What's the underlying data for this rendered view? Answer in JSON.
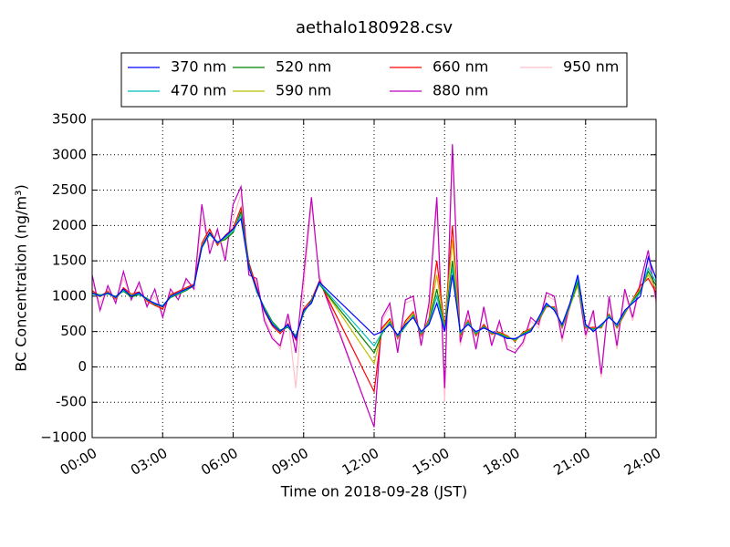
{
  "chart_data": {
    "type": "line",
    "title": "aethalo180928.csv",
    "xlabel": "Time on 2018-09-28 (JST)",
    "ylabel": "BC Concentration (ng/m³)",
    "legend": "upper center",
    "grid": true,
    "xlim": [
      0,
      1440
    ],
    "xticks": [
      {
        "value": 0,
        "label": "00:00"
      },
      {
        "value": 180,
        "label": "03:00"
      },
      {
        "value": 360,
        "label": "06:00"
      },
      {
        "value": 540,
        "label": "09:00"
      },
      {
        "value": 720,
        "label": "12:00"
      },
      {
        "value": 900,
        "label": "15:00"
      },
      {
        "value": 1080,
        "label": "18:00"
      },
      {
        "value": 1260,
        "label": "21:00"
      },
      {
        "value": 1440,
        "label": "24:00"
      }
    ],
    "ylim": [
      -1000,
      3500
    ],
    "yticks": [
      {
        "value": -1000,
        "label": "−1000"
      },
      -500,
      0,
      500,
      1000,
      1500,
      2000,
      2500,
      3000,
      3500
    ],
    "x": [
      0,
      20,
      40,
      60,
      80,
      100,
      120,
      140,
      160,
      180,
      200,
      220,
      240,
      260,
      280,
      300,
      320,
      340,
      360,
      380,
      400,
      420,
      440,
      460,
      480,
      500,
      520,
      540,
      560,
      580,
      720,
      740,
      760,
      780,
      800,
      820,
      840,
      860,
      880,
      900,
      920,
      940,
      960,
      980,
      1000,
      1020,
      1040,
      1060,
      1080,
      1100,
      1120,
      1140,
      1160,
      1180,
      1200,
      1220,
      1240,
      1260,
      1280,
      1300,
      1320,
      1340,
      1360,
      1380,
      1400,
      1420,
      1440
    ],
    "series": [
      {
        "name": "370 nm",
        "color": "#0000ff",
        "values": [
          1050,
          1000,
          1050,
          980,
          1100,
          1000,
          1050,
          950,
          900,
          850,
          1000,
          1050,
          1100,
          1150,
          1700,
          1900,
          1750,
          1850,
          1950,
          2100,
          1400,
          1100,
          800,
          600,
          500,
          600,
          400,
          800,
          900,
          1200,
          450,
          500,
          600,
          450,
          600,
          700,
          500,
          600,
          900,
          500,
          1300,
          500,
          600,
          500,
          550,
          500,
          450,
          400,
          400,
          450,
          500,
          700,
          900,
          800,
          600,
          900,
          1300,
          600,
          500,
          600,
          700,
          600,
          800,
          900,
          1000,
          1550,
          1250
        ]
      },
      {
        "name": "470 nm",
        "color": "#00bfbf",
        "values": [
          1030,
          1010,
          1040,
          990,
          1080,
          1010,
          1030,
          960,
          890,
          870,
          990,
          1040,
          1090,
          1160,
          1680,
          1880,
          1760,
          1830,
          1920,
          2150,
          1420,
          1080,
          820,
          620,
          510,
          580,
          420,
          780,
          920,
          1180,
          300,
          480,
          620,
          440,
          580,
          720,
          480,
          620,
          1000,
          520,
          1400,
          480,
          620,
          480,
          560,
          490,
          460,
          410,
          390,
          460,
          510,
          680,
          880,
          820,
          580,
          880,
          1250,
          580,
          520,
          580,
          720,
          580,
          780,
          920,
          1050,
          1400,
          1200
        ]
      },
      {
        "name": "520 nm",
        "color": "#008000",
        "values": [
          1040,
          1020,
          1030,
          1000,
          1070,
          990,
          1020,
          970,
          880,
          860,
          980,
          1030,
          1080,
          1150,
          1690,
          1870,
          1770,
          1800,
          1900,
          2200,
          1450,
          1060,
          840,
          640,
          520,
          560,
          440,
          760,
          940,
          1170,
          200,
          470,
          630,
          430,
          570,
          730,
          470,
          630,
          1100,
          530,
          1500,
          470,
          630,
          470,
          570,
          480,
          470,
          420,
          380,
          470,
          520,
          670,
          870,
          830,
          570,
          870,
          1200,
          570,
          530,
          570,
          730,
          570,
          770,
          930,
          1080,
          1350,
          1150
        ]
      },
      {
        "name": "590 nm",
        "color": "#bfbf00",
        "values": [
          1060,
          990,
          1060,
          970,
          1090,
          1020,
          1040,
          940,
          900,
          840,
          1010,
          1050,
          1110,
          1140,
          1720,
          1910,
          1740,
          1820,
          1930,
          2180,
          1430,
          1090,
          810,
          610,
          490,
          590,
          410,
          790,
          910,
          1190,
          50,
          520,
          650,
          420,
          620,
          750,
          460,
          650,
          1300,
          540,
          1800,
          460,
          640,
          460,
          580,
          470,
          480,
          430,
          370,
          480,
          530,
          660,
          860,
          840,
          560,
          860,
          1150,
          560,
          540,
          560,
          740,
          560,
          760,
          940,
          1100,
          1300,
          1100
        ]
      },
      {
        "name": "660 nm",
        "color": "#ff0000",
        "values": [
          1080,
          1000,
          1070,
          960,
          1120,
          1030,
          1060,
          930,
          870,
          820,
          1020,
          1070,
          1120,
          1170,
          1750,
          1950,
          1720,
          1860,
          1960,
          2250,
          1480,
          1120,
          790,
          580,
          470,
          610,
          380,
          820,
          950,
          1210,
          -350,
          550,
          680,
          400,
          650,
          780,
          440,
          680,
          1500,
          560,
          2000,
          440,
          660,
          440,
          600,
          460,
          490,
          440,
          360,
          490,
          540,
          650,
          850,
          850,
          550,
          850,
          1250,
          550,
          560,
          550,
          750,
          550,
          750,
          950,
          1150,
          1250,
          1050
        ]
      },
      {
        "name": "880 nm",
        "color": "#bf00bf",
        "values": [
          1300,
          800,
          1150,
          900,
          1350,
          950,
          1200,
          850,
          1100,
          700,
          1100,
          950,
          1250,
          1100,
          2300,
          1600,
          1950,
          1500,
          2300,
          2550,
          1300,
          1250,
          650,
          400,
          300,
          750,
          200,
          1300,
          2400,
          1250,
          -850,
          700,
          900,
          200,
          950,
          1000,
          300,
          900,
          2400,
          -300,
          3150,
          350,
          800,
          250,
          850,
          300,
          650,
          250,
          200,
          350,
          700,
          600,
          1050,
          1000,
          400,
          900,
          1150,
          450,
          800,
          -100,
          1000,
          300,
          1100,
          700,
          1200,
          1650,
          950
        ]
      },
      {
        "name": "950 nm",
        "color": "#ffc0cb",
        "values": [
          1200,
          900,
          1100,
          950,
          1250,
          980,
          1150,
          880,
          1000,
          750,
          1050,
          1000,
          1200,
          1150,
          2100,
          1700,
          1900,
          1600,
          2100,
          2450,
          1350,
          1200,
          700,
          450,
          250,
          700,
          -300,
          1100,
          2300,
          1300,
          -850,
          650,
          850,
          250,
          900,
          950,
          350,
          850,
          2300,
          -500,
          3000,
          300,
          750,
          300,
          800,
          350,
          600,
          300,
          250,
          300,
          650,
          550,
          1000,
          950,
          350,
          850,
          1200,
          400,
          750,
          -150,
          950,
          250,
          1050,
          650,
          1150,
          1500,
          900
        ]
      }
    ]
  }
}
